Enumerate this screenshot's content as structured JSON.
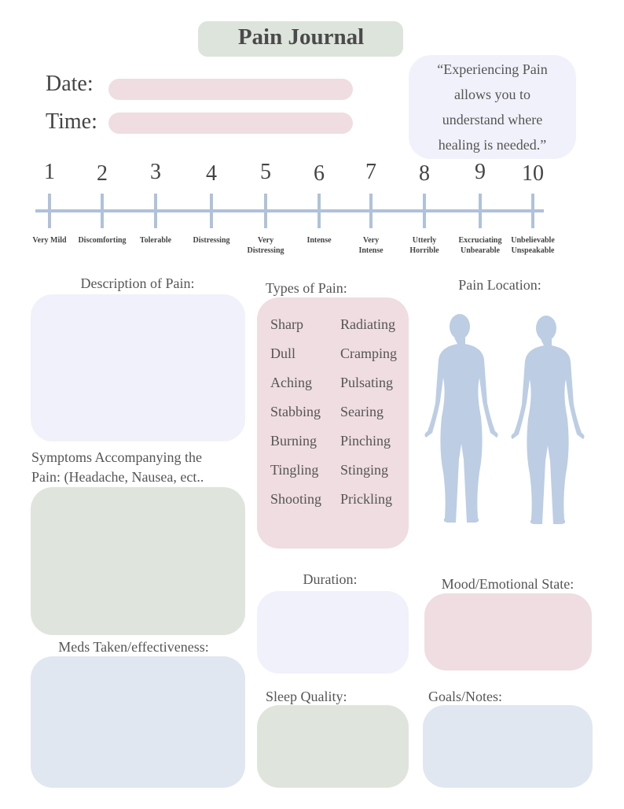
{
  "header": {
    "title": "Pain Journal",
    "date_label": "Date:",
    "time_label": "Time:",
    "quote": "“Experiencing Pain allows you to understand where healing is needed.”"
  },
  "scale": [
    {
      "number": "1",
      "label": [
        "Very Mild"
      ]
    },
    {
      "number": "2",
      "label": [
        "Discomforting"
      ]
    },
    {
      "number": "3",
      "label": [
        "Tolerable"
      ]
    },
    {
      "number": "4",
      "label": [
        "Distressing"
      ]
    },
    {
      "number": "5",
      "label": [
        "Very",
        "Distressing"
      ]
    },
    {
      "number": "6",
      "label": [
        "Intense"
      ]
    },
    {
      "number": "7",
      "label": [
        "Very",
        "Intense"
      ]
    },
    {
      "number": "8",
      "label": [
        "Utterly",
        "Horrible"
      ]
    },
    {
      "number": "9",
      "label": [
        "Excruciating",
        "Unbearable"
      ]
    },
    {
      "number": "10",
      "label": [
        "Unbelievable",
        "Unspeakable"
      ]
    }
  ],
  "sections": {
    "description": "Description of Pain:",
    "types": {
      "title": "Types of Pain:",
      "items": [
        [
          "Sharp",
          "Radiating"
        ],
        [
          "Dull",
          "Cramping"
        ],
        [
          "Aching",
          "Pulsating"
        ],
        [
          "Stabbing",
          "Searing"
        ],
        [
          "Burning",
          "Pinching"
        ],
        [
          "Tingling",
          "Stinging"
        ],
        [
          "Shooting",
          "Prickling"
        ]
      ]
    },
    "location": "Pain Location:",
    "symptoms": [
      "Symptoms Accompanying the",
      "Pain: (Headache, Nausea, ect.."
    ],
    "meds": "Meds Taken/effectiveness:",
    "duration": "Duration:",
    "mood": "Mood/Emotional State:",
    "sleep": "Sleep Quality:",
    "goals": "Goals/Notes:"
  }
}
